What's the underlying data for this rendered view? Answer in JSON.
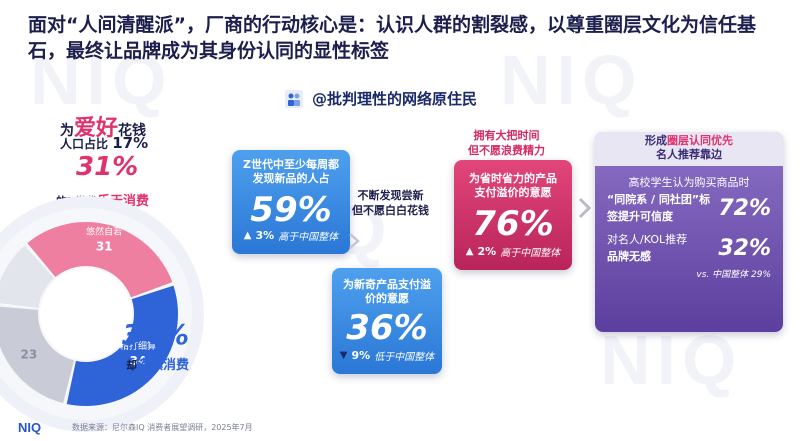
{
  "watermark": "NIQ",
  "title": "面对“人间清醒派”，厂商的行动核心是：认识人群的割裂感，以尊重圈层文化为信任基石，最终让品牌成为其身份认同的显性标签",
  "persona": {
    "label": "@批判理性的网络原住民"
  },
  "left": {
    "wei": "为",
    "aihao": "爱好",
    "huaqian": "花钱",
    "population_label": "人口占比",
    "population_value": "17%",
    "pct_pink": "31%",
    "pink_note_prefix": "的Z世代",
    "pink_note_hl": "乐于消费",
    "pct_blue": "34%",
    "blue_note_prefix": "却",
    "blue_note_hl": "谨慎消费",
    "donut": {
      "segments": [
        {
          "label": "悠然自若",
          "value": 31,
          "color": "#ef7fa1"
        },
        {
          "label": "精打细算",
          "value": 34,
          "color": "#2e64d8"
        },
        {
          "label": "",
          "value": 23,
          "color": "#c9ccd6"
        },
        {
          "label": "",
          "value": 12,
          "color": "#e3e5ec"
        }
      ]
    }
  },
  "cards": {
    "c1": {
      "label": "Z世代中至少每周都发现新品的人占",
      "value": "59%",
      "delta": "3%",
      "note": "高于中国整体"
    },
    "mid_note": [
      "不断发现尝新",
      "但不愿白白花钱"
    ],
    "c2": {
      "label": "为新奇产品支付溢价的意愿",
      "value": "36%",
      "delta": "9%",
      "note": "低于中国整体"
    },
    "pink_note": [
      "拥有大把时间",
      "但不愿浪费精力"
    ],
    "c3": {
      "label": "为省时省力的产品支付溢价的意愿",
      "value": "76%",
      "delta": "2%",
      "note": "高于中国整体"
    },
    "c4": {
      "head_prefix": "形成",
      "head_hl": "圈层认同优先",
      "head_line2": "名人推荐靠边",
      "line1": "高校学生认为购买商品时",
      "line2": "“同院系 / 同社团”标",
      "line3": "签提升可信度",
      "value1": "72%",
      "line4": "对名人/KOL推荐",
      "line5": "品牌无感",
      "value2": "32%",
      "vs": "vs. 中国整体 29%"
    }
  },
  "footer": {
    "logo": "NIQ",
    "source": "数据来源：尼尔森IQ 消费者展望调研，2025年7月"
  },
  "colors": {
    "pink": "#e0336e",
    "blue": "#2e64d8",
    "purple": "#6a4fb0",
    "navy": "#1b1f4a"
  }
}
